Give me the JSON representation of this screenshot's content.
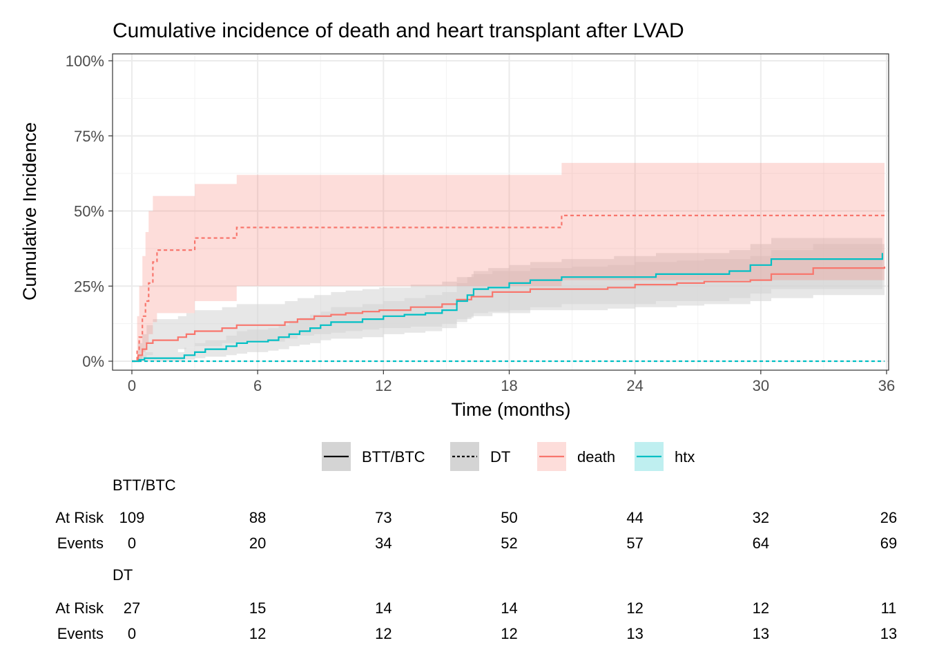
{
  "chart_data": {
    "type": "line",
    "subtype": "cumulative incidence step curves with confidence bands",
    "title": "Cumulative incidence of death and heart transplant after LVAD",
    "xlabel": "Time (months)",
    "ylabel": "Cumulative Incidence",
    "xlim": [
      0,
      36
    ],
    "ylim": [
      0,
      1
    ],
    "x_ticks": [
      0,
      6,
      12,
      18,
      24,
      30,
      36
    ],
    "y_ticks": [
      {
        "value": 0,
        "label": "0%"
      },
      {
        "value": 0.25,
        "label": "25%"
      },
      {
        "value": 0.5,
        "label": "50%"
      },
      {
        "value": 0.75,
        "label": "75%"
      },
      {
        "value": 1,
        "label": "100%"
      }
    ],
    "grid": true,
    "colors": {
      "death": "#F8766D",
      "htx": "#00BFC4",
      "band_gray": "#d4d4d4"
    },
    "legend": {
      "placement": "bottom",
      "linetype_entries": [
        {
          "label": "BTT/BTC",
          "dash": "solid"
        },
        {
          "label": "DT",
          "dash": "dotted"
        }
      ],
      "color_entries": [
        {
          "label": "death",
          "color": "#F8766D"
        },
        {
          "label": "htx",
          "color": "#00BFC4"
        }
      ]
    },
    "series": [
      {
        "group": "BTT/BTC",
        "event": "death",
        "dash": "solid",
        "x": [
          0,
          0.3,
          0.5,
          0.7,
          1.0,
          2.2,
          2.6,
          3.0,
          4.3,
          5.0,
          7.3,
          7.9,
          8.7,
          9.5,
          10.2,
          11.0,
          11.8,
          13.3,
          14.8,
          15.5,
          16.2,
          17.2,
          19.0,
          21.0,
          22.7,
          24.0,
          26.0,
          27.3,
          29.5,
          30.5,
          32.5,
          35.9
        ],
        "y": [
          0,
          0.02,
          0.04,
          0.06,
          0.07,
          0.08,
          0.09,
          0.1,
          0.11,
          0.12,
          0.13,
          0.14,
          0.15,
          0.155,
          0.16,
          0.165,
          0.17,
          0.18,
          0.19,
          0.205,
          0.215,
          0.23,
          0.24,
          0.24,
          0.245,
          0.255,
          0.26,
          0.265,
          0.27,
          0.29,
          0.31,
          0.315
        ],
        "ci_low": [
          0,
          0,
          0.01,
          0.02,
          0.03,
          0.04,
          0.045,
          0.05,
          0.06,
          0.065,
          0.075,
          0.085,
          0.09,
          0.095,
          0.1,
          0.105,
          0.11,
          0.115,
          0.125,
          0.14,
          0.15,
          0.16,
          0.17,
          0.17,
          0.175,
          0.18,
          0.185,
          0.19,
          0.2,
          0.21,
          0.22,
          0.225
        ],
        "ci_high": [
          0,
          0.06,
          0.09,
          0.12,
          0.14,
          0.15,
          0.16,
          0.17,
          0.18,
          0.19,
          0.2,
          0.21,
          0.22,
          0.23,
          0.235,
          0.24,
          0.245,
          0.255,
          0.265,
          0.28,
          0.29,
          0.3,
          0.31,
          0.315,
          0.32,
          0.33,
          0.335,
          0.34,
          0.35,
          0.37,
          0.39,
          0.4
        ]
      },
      {
        "group": "BTT/BTC",
        "event": "htx",
        "dash": "solid",
        "x": [
          0,
          0.35,
          0.6,
          1.5,
          2.5,
          3.0,
          3.5,
          4.5,
          5.0,
          5.5,
          6.5,
          7.0,
          7.5,
          8.0,
          8.5,
          9.0,
          9.5,
          11.0,
          12.0,
          13.0,
          14.0,
          14.8,
          15.5,
          16.0,
          16.3,
          17.0,
          18.0,
          19.0,
          20.5,
          23.0,
          25.0,
          28.5,
          29.5,
          30.5,
          35.8
        ],
        "y": [
          0,
          0.005,
          0.01,
          0.01,
          0.02,
          0.03,
          0.04,
          0.05,
          0.06,
          0.065,
          0.07,
          0.08,
          0.09,
          0.1,
          0.11,
          0.12,
          0.13,
          0.14,
          0.15,
          0.155,
          0.16,
          0.17,
          0.2,
          0.22,
          0.24,
          0.245,
          0.26,
          0.27,
          0.28,
          0.28,
          0.29,
          0.3,
          0.32,
          0.34,
          0.36
        ],
        "ci_low": [
          0,
          0,
          0,
          0,
          0.005,
          0.01,
          0.015,
          0.02,
          0.025,
          0.03,
          0.035,
          0.04,
          0.05,
          0.055,
          0.06,
          0.07,
          0.075,
          0.08,
          0.09,
          0.095,
          0.1,
          0.11,
          0.13,
          0.145,
          0.16,
          0.165,
          0.17,
          0.18,
          0.19,
          0.19,
          0.2,
          0.21,
          0.225,
          0.24,
          0.28
        ],
        "ci_high": [
          0,
          0.02,
          0.03,
          0.03,
          0.045,
          0.06,
          0.07,
          0.085,
          0.1,
          0.105,
          0.11,
          0.12,
          0.135,
          0.145,
          0.155,
          0.165,
          0.18,
          0.19,
          0.2,
          0.21,
          0.22,
          0.23,
          0.26,
          0.28,
          0.3,
          0.31,
          0.32,
          0.33,
          0.34,
          0.35,
          0.36,
          0.37,
          0.39,
          0.41,
          0.45
        ]
      },
      {
        "group": "DT",
        "event": "death",
        "dash": "dotted",
        "x": [
          0,
          0.25,
          0.35,
          0.5,
          0.65,
          0.8,
          1.0,
          1.2,
          3.0,
          5.0,
          20.5,
          35.9
        ],
        "y": [
          0,
          0.04,
          0.08,
          0.15,
          0.2,
          0.26,
          0.33,
          0.37,
          0.41,
          0.445,
          0.485,
          0.485
        ],
        "ci_low": [
          0,
          0,
          0.01,
          0.03,
          0.06,
          0.09,
          0.13,
          0.16,
          0.2,
          0.25,
          0.27,
          0.27
        ],
        "ci_high": [
          0,
          0.15,
          0.25,
          0.35,
          0.43,
          0.5,
          0.55,
          0.55,
          0.59,
          0.62,
          0.66,
          0.66
        ]
      },
      {
        "group": "DT",
        "event": "htx",
        "dash": "dotted",
        "x": [
          0,
          35.9
        ],
        "y": [
          0,
          0
        ],
        "ci_low": [
          0,
          0
        ],
        "ci_high": [
          0,
          0
        ]
      }
    ],
    "risk_table": {
      "times": [
        0,
        6,
        12,
        18,
        24,
        30,
        36
      ],
      "row_labels": {
        "at_risk": "At Risk",
        "events": "Events"
      },
      "groups": [
        {
          "name": "BTT/BTC",
          "at_risk": [
            109,
            88,
            73,
            50,
            44,
            32,
            26
          ],
          "events": [
            0,
            20,
            34,
            52,
            57,
            64,
            69
          ]
        },
        {
          "name": "DT",
          "at_risk": [
            27,
            15,
            14,
            14,
            12,
            12,
            11
          ],
          "events": [
            0,
            12,
            12,
            12,
            13,
            13,
            13
          ]
        }
      ]
    }
  }
}
